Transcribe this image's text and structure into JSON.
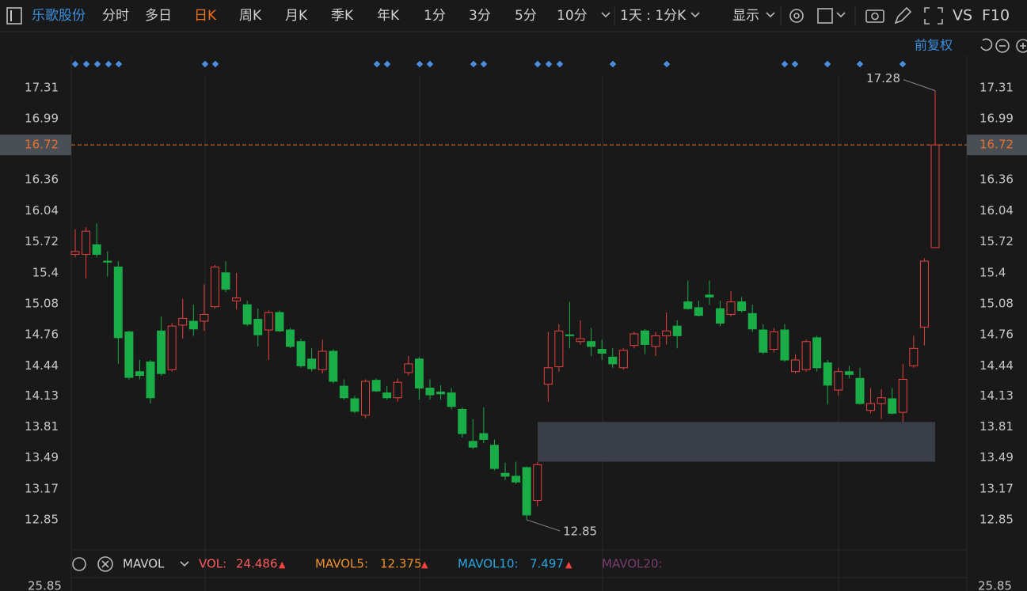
{
  "toolbar": {
    "stock": "乐歌股份",
    "tabs": [
      {
        "label": "分时"
      },
      {
        "label": "多日"
      },
      {
        "label": "日K",
        "active": true
      },
      {
        "label": "周K"
      },
      {
        "label": "月K"
      },
      {
        "label": "季K"
      },
      {
        "label": "年K"
      },
      {
        "label": "1分"
      },
      {
        "label": "3分"
      },
      {
        "label": "5分"
      },
      {
        "label": "10分"
      }
    ],
    "period": "1天 : 1分K",
    "display": "显示",
    "vs": "VS",
    "f10": "F10"
  },
  "adjust": "前复权",
  "chart_data": {
    "type": "candlestick",
    "up_color": "#e8413e",
    "down_color": "#1aac47",
    "ohlc": [
      [
        15.59,
        15.85,
        15.56,
        15.62
      ],
      [
        15.59,
        15.87,
        15.34,
        15.83
      ],
      [
        15.69,
        15.91,
        15.56,
        15.59
      ],
      [
        15.52,
        15.62,
        15.36,
        15.51
      ],
      [
        15.46,
        15.52,
        14.46,
        14.73
      ],
      [
        14.79,
        14.8,
        14.3,
        14.32
      ],
      [
        14.38,
        14.5,
        14.3,
        14.34
      ],
      [
        14.48,
        14.5,
        14.05,
        14.11
      ],
      [
        14.8,
        14.95,
        14.34,
        14.36
      ],
      [
        14.4,
        14.88,
        14.38,
        14.85
      ],
      [
        14.86,
        15.13,
        14.72,
        14.93
      ],
      [
        14.9,
        15.07,
        14.75,
        14.82
      ],
      [
        14.9,
        15.28,
        14.8,
        14.97
      ],
      [
        15.05,
        15.48,
        15.03,
        15.46
      ],
      [
        15.4,
        15.52,
        15.2,
        15.23
      ],
      [
        15.11,
        15.4,
        15.02,
        15.14
      ],
      [
        15.07,
        15.11,
        14.85,
        14.87
      ],
      [
        14.92,
        15.03,
        14.64,
        14.76
      ],
      [
        14.81,
        15.01,
        14.5,
        14.99
      ],
      [
        14.99,
        15.01,
        14.79,
        14.8
      ],
      [
        14.81,
        14.83,
        14.62,
        14.64
      ],
      [
        14.69,
        14.72,
        14.42,
        14.44
      ],
      [
        14.51,
        14.62,
        14.38,
        14.41
      ],
      [
        14.4,
        14.71,
        14.36,
        14.59
      ],
      [
        14.59,
        14.61,
        14.26,
        14.28
      ],
      [
        14.23,
        14.3,
        14.09,
        14.11
      ],
      [
        14.1,
        14.13,
        13.95,
        13.97
      ],
      [
        13.93,
        14.3,
        13.9,
        14.28
      ],
      [
        14.29,
        14.31,
        14.17,
        14.18
      ],
      [
        14.16,
        14.23,
        14.09,
        14.11
      ],
      [
        14.11,
        14.31,
        14.07,
        14.27
      ],
      [
        14.37,
        14.54,
        14.34,
        14.46
      ],
      [
        14.51,
        14.53,
        14.09,
        14.21
      ],
      [
        14.21,
        14.3,
        14.09,
        14.14
      ],
      [
        14.17,
        14.24,
        14.09,
        14.15
      ],
      [
        14.16,
        14.21,
        13.99,
        14.02
      ],
      [
        13.99,
        14.01,
        13.7,
        13.74
      ],
      [
        13.66,
        13.89,
        13.58,
        13.6
      ],
      [
        13.74,
        14.01,
        13.64,
        13.68
      ],
      [
        13.62,
        13.68,
        13.36,
        13.38
      ],
      [
        13.33,
        13.44,
        13.26,
        13.3
      ],
      [
        13.3,
        13.45,
        13.22,
        13.24
      ],
      [
        13.39,
        13.4,
        12.85,
        12.9
      ],
      [
        13.05,
        13.45,
        12.99,
        13.42
      ],
      [
        14.25,
        14.79,
        14.07,
        14.42
      ],
      [
        14.43,
        14.87,
        14.38,
        14.8
      ],
      [
        14.76,
        15.1,
        14.62,
        14.75
      ],
      [
        14.69,
        14.91,
        14.66,
        14.72
      ],
      [
        14.69,
        14.83,
        14.54,
        14.64
      ],
      [
        14.61,
        14.71,
        14.5,
        14.57
      ],
      [
        14.53,
        14.62,
        14.42,
        14.46
      ],
      [
        14.42,
        14.62,
        14.4,
        14.6
      ],
      [
        14.65,
        14.79,
        14.62,
        14.77
      ],
      [
        14.8,
        14.82,
        14.56,
        14.66
      ],
      [
        14.64,
        14.79,
        14.54,
        14.75
      ],
      [
        14.75,
        14.99,
        14.66,
        14.8
      ],
      [
        14.85,
        14.91,
        14.62,
        14.75
      ],
      [
        15.1,
        15.32,
        15.02,
        15.03
      ],
      [
        15.04,
        15.11,
        14.95,
        14.96
      ],
      [
        15.17,
        15.32,
        15.07,
        15.15
      ],
      [
        15.03,
        15.11,
        14.85,
        14.88
      ],
      [
        14.97,
        15.21,
        14.95,
        15.1
      ],
      [
        15.1,
        15.15,
        14.99,
        15.01
      ],
      [
        14.98,
        15.07,
        14.79,
        14.82
      ],
      [
        14.81,
        14.87,
        14.56,
        14.58
      ],
      [
        14.61,
        14.83,
        14.58,
        14.79
      ],
      [
        14.81,
        14.87,
        14.48,
        14.5
      ],
      [
        14.38,
        14.56,
        14.36,
        14.5
      ],
      [
        14.4,
        14.71,
        14.38,
        14.69
      ],
      [
        14.73,
        14.75,
        14.38,
        14.42
      ],
      [
        14.47,
        14.5,
        14.04,
        14.24
      ],
      [
        14.19,
        14.42,
        14.13,
        14.38
      ],
      [
        14.38,
        14.44,
        14.31,
        14.35
      ],
      [
        14.31,
        14.42,
        14.04,
        14.05
      ],
      [
        13.98,
        14.21,
        13.95,
        14.05
      ],
      [
        14.05,
        14.2,
        13.89,
        14.11
      ],
      [
        14.1,
        14.21,
        13.94,
        13.95
      ],
      [
        13.96,
        14.46,
        13.86,
        14.3
      ],
      [
        14.44,
        14.75,
        14.42,
        14.62
      ],
      [
        14.84,
        15.55,
        14.65,
        15.52
      ],
      [
        15.66,
        17.28,
        15.66,
        16.72
      ]
    ],
    "ylim": [
      12.54,
      17.44
    ],
    "yticks": [
      17.31,
      16.99,
      16.36,
      16.04,
      15.72,
      15.4,
      15.08,
      14.76,
      14.44,
      14.13,
      13.81,
      13.49,
      13.17,
      12.85
    ],
    "last_price": 16.72,
    "last_color": "#e8702e",
    "annotations": {
      "high": 17.28,
      "low": 12.85
    },
    "zone": [
      13.45,
      13.86
    ]
  },
  "volume_panel": {
    "indicator": "MAVOL",
    "items": [
      {
        "name": "VOL:",
        "value": 24.486,
        "trend": "▲",
        "color": "#ff5c5c"
      },
      {
        "name": "MAVOL5:",
        "value": 12.375,
        "trend": "▲",
        "color": "#f0912e"
      },
      {
        "name": "MAVOL10:",
        "value": 7.497,
        "trend": "▲",
        "color": "#2aa7e0"
      },
      {
        "name": "MAVOL20:",
        "color": "#7b3d6e"
      }
    ],
    "axis_top": 25.85
  }
}
